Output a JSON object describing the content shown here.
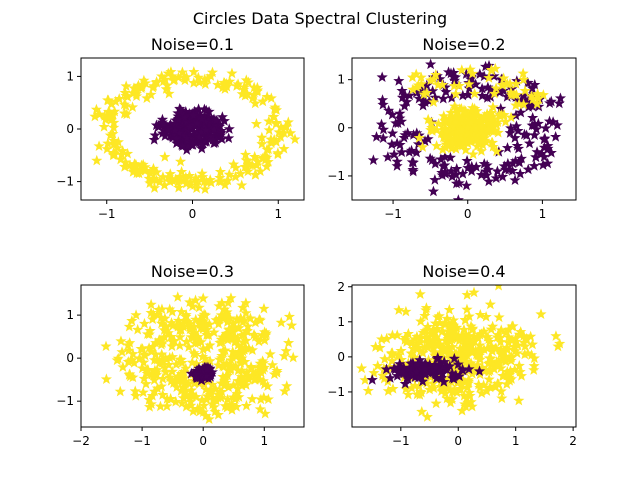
{
  "figure": {
    "suptitle": "Circles Data Spectral Clustering"
  },
  "colors": {
    "cluster_0": "#440154",
    "cluster_1": "#fde725",
    "marker": "star"
  },
  "chart_data": [
    {
      "type": "scatter",
      "title": "Noise=0.1",
      "xlim": [
        -1.3,
        1.3
      ],
      "ylim": [
        -1.35,
        1.35
      ],
      "xticks": [
        -1,
        0,
        1
      ],
      "yticks": [
        -1,
        0,
        1
      ],
      "tick_labels": {
        "x": [
          "−1",
          "0",
          "1"
        ],
        "y": [
          "−1",
          "0",
          "1"
        ]
      },
      "clusters": [
        {
          "shape": "ring",
          "color": "#fde725",
          "center": [
            0,
            0
          ],
          "r_mean": 1.0,
          "r_sd": 0.09,
          "n": 250
        },
        {
          "shape": "ring",
          "color": "#440154",
          "center": [
            0,
            0
          ],
          "r_mean": 0.24,
          "r_sd": 0.09,
          "n": 250
        }
      ]
    },
    {
      "type": "scatter",
      "title": "Noise=0.2",
      "xlim": [
        -1.55,
        1.45
      ],
      "ylim": [
        -1.5,
        1.45
      ],
      "xticks": [
        -1,
        0,
        1
      ],
      "yticks": [
        -1,
        0,
        1
      ],
      "tick_labels": {
        "x": [
          "−1",
          "0",
          "1"
        ],
        "y": [
          "−1",
          "0",
          "1"
        ]
      },
      "clusters": [
        {
          "shape": "ring",
          "color": "#440154",
          "center": [
            0,
            0
          ],
          "r_mean": 1.0,
          "r_sd": 0.2,
          "n": 220
        },
        {
          "shape": "ring",
          "color": "#fde725",
          "center": [
            0,
            0
          ],
          "r_mean": 0.25,
          "r_sd": 0.15,
          "n": 250
        },
        {
          "shape": "arc",
          "color": "#fde725",
          "center": [
            0,
            0
          ],
          "r_mean": 1.05,
          "r_sd": 0.16,
          "angle_range": [
            0.45,
            2.4
          ],
          "n": 50
        }
      ]
    },
    {
      "type": "scatter",
      "title": "Noise=0.3",
      "xlim": [
        -2.0,
        1.65
      ],
      "ylim": [
        -1.6,
        1.7
      ],
      "xticks": [
        -2,
        -1,
        0,
        1
      ],
      "yticks": [
        -1,
        0,
        1
      ],
      "tick_labels": {
        "x": [
          "−2",
          "−1",
          "0",
          "1"
        ],
        "y": [
          "−1",
          "0",
          "1"
        ]
      },
      "clusters": [
        {
          "shape": "ring",
          "color": "#fde725",
          "center": [
            0,
            0
          ],
          "r_mean": 0.9,
          "r_sd": 0.33,
          "n": 440
        },
        {
          "shape": "blob",
          "color": "#440154",
          "center": [
            0.02,
            -0.35
          ],
          "r_sd": 0.08,
          "n": 60
        }
      ]
    },
    {
      "type": "scatter",
      "title": "Noise=0.4",
      "xlim": [
        -1.85,
        2.05
      ],
      "ylim": [
        -2.0,
        2.05
      ],
      "xticks": [
        -1,
        0,
        1,
        2
      ],
      "yticks": [
        -1,
        0,
        1,
        2
      ],
      "tick_labels": {
        "x": [
          "−1",
          "0",
          "1",
          "2"
        ],
        "y": [
          "−1",
          "0",
          "1",
          "2"
        ]
      },
      "clusters": [
        {
          "shape": "ring",
          "color": "#fde725",
          "center": [
            0,
            0
          ],
          "r_mean": 0.8,
          "r_sd": 0.42,
          "n": 440
        },
        {
          "shape": "blob",
          "color": "#440154",
          "center": [
            -0.55,
            -0.4
          ],
          "sx": 0.32,
          "sy": 0.14,
          "n": 110
        }
      ]
    }
  ]
}
